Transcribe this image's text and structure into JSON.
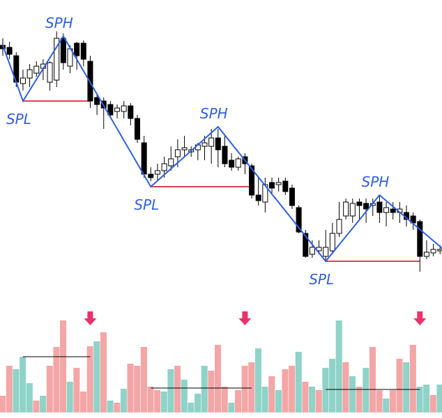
{
  "chart_data": {
    "type": "candlestick",
    "ylim": [
      0,
      400
    ],
    "y2lim": [
      0,
      140
    ],
    "up_color": "#ffffff",
    "down_color": "#000000",
    "ohlc": [
      [
        335,
        345,
        320,
        330
      ],
      [
        332,
        340,
        315,
        322
      ],
      [
        320,
        325,
        275,
        282
      ],
      [
        280,
        300,
        270,
        288
      ],
      [
        288,
        308,
        275,
        300
      ],
      [
        295,
        312,
        290,
        305
      ],
      [
        302,
        315,
        285,
        308
      ],
      [
        282,
        312,
        270,
        310
      ],
      [
        285,
        355,
        275,
        345
      ],
      [
        345,
        352,
        300,
        310
      ],
      [
        305,
        335,
        295,
        330
      ],
      [
        338,
        340,
        300,
        320
      ],
      [
        338,
        342,
        305,
        315
      ],
      [
        312,
        320,
        245,
        255
      ],
      [
        260,
        265,
        235,
        250
      ],
      [
        255,
        260,
        215,
        245
      ],
      [
        250,
        255,
        230,
        235
      ],
      [
        240,
        250,
        230,
        245
      ],
      [
        240,
        255,
        230,
        248
      ],
      [
        248,
        252,
        220,
        230
      ],
      [
        230,
        235,
        195,
        200
      ],
      [
        195,
        205,
        145,
        150
      ],
      [
        150,
        160,
        140,
        145
      ],
      [
        150,
        165,
        140,
        155
      ],
      [
        155,
        175,
        145,
        165
      ],
      [
        162,
        190,
        155,
        172
      ],
      [
        175,
        200,
        160,
        185
      ],
      [
        185,
        205,
        175,
        188
      ],
      [
        182,
        190,
        175,
        185
      ],
      [
        185,
        195,
        170,
        192
      ],
      [
        190,
        205,
        170,
        195
      ],
      [
        190,
        215,
        165,
        202
      ],
      [
        202,
        215,
        160,
        185
      ],
      [
        190,
        205,
        160,
        165
      ],
      [
        170,
        180,
        155,
        160
      ],
      [
        160,
        175,
        155,
        172
      ],
      [
        175,
        180,
        150,
        165
      ],
      [
        162,
        165,
        115,
        120
      ],
      [
        120,
        145,
        105,
        112
      ],
      [
        110,
        145,
        95,
        135
      ],
      [
        138,
        145,
        120,
        130
      ],
      [
        135,
        145,
        125,
        138
      ],
      [
        140,
        145,
        120,
        125
      ],
      [
        130,
        135,
        100,
        105
      ],
      [
        102,
        105,
        65,
        67
      ],
      [
        65,
        70,
        30,
        32
      ],
      [
        35,
        55,
        30,
        45
      ],
      [
        40,
        55,
        35,
        45
      ],
      [
        32,
        70,
        25,
        45
      ],
      [
        40,
        80,
        35,
        65
      ],
      [
        65,
        110,
        60,
        85
      ],
      [
        90,
        115,
        85,
        110
      ],
      [
        90,
        115,
        80,
        108
      ],
      [
        110,
        115,
        85,
        105
      ],
      [
        108,
        115,
        80,
        100
      ],
      [
        105,
        115,
        90,
        108
      ],
      [
        110,
        120,
        80,
        95
      ],
      [
        95,
        110,
        75,
        102
      ],
      [
        100,
        110,
        85,
        95
      ],
      [
        95,
        110,
        80,
        100
      ],
      [
        95,
        105,
        75,
        85
      ],
      [
        90,
        95,
        70,
        80
      ],
      [
        82,
        85,
        10,
        32
      ],
      [
        32,
        55,
        28,
        38
      ],
      [
        37,
        50,
        32,
        42
      ],
      [
        40,
        48,
        35,
        42
      ]
    ],
    "zigzag": {
      "color": "#2f5fe0",
      "x": [
        0,
        3,
        9,
        22,
        32,
        48,
        56,
        65.5
      ],
      "y": [
        335,
        255,
        348,
        132,
        218,
        25,
        120,
        42
      ],
      "labels": [
        null,
        "SPL",
        "SPH",
        "SPL",
        "SPH",
        "SPL",
        "SPH",
        null
      ]
    },
    "support_color": "#e0414f",
    "support_lines": [
      {
        "from": 3,
        "to": 13,
        "value": 255
      },
      {
        "from": 22,
        "to": 37,
        "value": 132
      },
      {
        "from": 48,
        "to": 62,
        "value": 25
      }
    ],
    "volume": {
      "palette": [
        "#8fd3c8",
        "#f4a6a6"
      ],
      "color_index": [
        1,
        1,
        0,
        0,
        0,
        1,
        0,
        1,
        1,
        1,
        0,
        1,
        1,
        1,
        0,
        1,
        0,
        1,
        0,
        1,
        1,
        1,
        1,
        1,
        0,
        0,
        1,
        0,
        0,
        0,
        0,
        1,
        1,
        1,
        0,
        1,
        1,
        1,
        0,
        0,
        1,
        0,
        1,
        1,
        0,
        1,
        0,
        1,
        0,
        0,
        0,
        1,
        0,
        1,
        0,
        1,
        1,
        0,
        1,
        1,
        0,
        1,
        0,
        0,
        1,
        0
      ],
      "values": [
        24,
        67,
        62,
        80,
        42,
        17,
        24,
        67,
        94,
        132,
        44,
        64,
        30,
        95,
        102,
        115,
        17,
        14,
        34,
        70,
        67,
        94,
        37,
        32,
        30,
        62,
        67,
        47,
        14,
        27,
        67,
        60,
        97,
        37,
        14,
        32,
        67,
        72,
        92,
        37,
        52,
        32,
        62,
        67,
        87,
        44,
        37,
        32,
        64,
        77,
        132,
        72,
        52,
        37,
        64,
        94,
        32,
        20,
        32,
        77,
        72,
        97,
        37,
        40,
        25,
        40
      ],
      "average_lines": [
        {
          "from": 3,
          "to": 13,
          "value": 80
        },
        {
          "from": 22,
          "to": 37,
          "value": 35
        },
        {
          "from": 48,
          "to": 62,
          "value": 33
        }
      ],
      "arrow_color": "#e8336b",
      "arrows": [
        13,
        36,
        62
      ]
    }
  }
}
